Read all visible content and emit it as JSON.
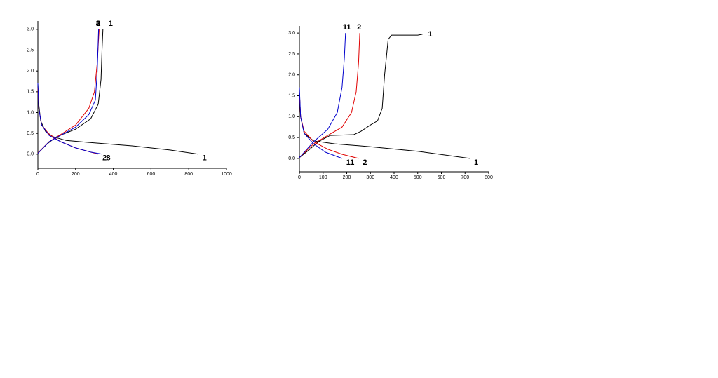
{
  "chart_data": [
    {
      "type": "line",
      "xlim": [
        0,
        1000
      ],
      "ylim": [
        -0.34,
        3.2
      ],
      "xticks": [
        0,
        200,
        400,
        600,
        800,
        1000
      ],
      "yticks": [
        {
          "value": 0,
          "label": "0.0"
        },
        {
          "value": 0.5,
          "label": "0.5"
        },
        {
          "value": 1,
          "label": "1.0"
        },
        {
          "value": 1.5,
          "label": "1.5"
        },
        {
          "value": 2,
          "label": "2.0"
        },
        {
          "value": 2.5,
          "label": "2.5"
        },
        {
          "value": 3,
          "label": "3.0"
        }
      ],
      "series": [
        {
          "name": "1",
          "color": "#000000",
          "x": [
            0,
            5,
            15,
            40,
            80,
            150,
            300,
            500,
            700,
            850,
            null,
            0,
            50,
            100,
            200,
            280,
            320,
            335,
            340,
            345
          ],
          "values": [
            1.7,
            1.2,
            0.8,
            0.55,
            0.42,
            0.33,
            0.27,
            0.2,
            0.1,
            0.0,
            null,
            0.02,
            0.25,
            0.42,
            0.6,
            0.85,
            1.2,
            1.8,
            2.5,
            3.0
          ]
        },
        {
          "name": "2",
          "color": "#e00000",
          "x": [
            0,
            5,
            20,
            60,
            120,
            200,
            280,
            320,
            null,
            0,
            60,
            120,
            200,
            270,
            300,
            315,
            325
          ],
          "values": [
            1.6,
            1.1,
            0.7,
            0.48,
            0.3,
            0.15,
            0.05,
            0.0,
            null,
            0.03,
            0.3,
            0.47,
            0.7,
            1.1,
            1.5,
            2.2,
            3.0
          ]
        },
        {
          "name": "8",
          "color": "#0000cc",
          "x": [
            0,
            5,
            20,
            60,
            120,
            200,
            280,
            340,
            null,
            0,
            60,
            120,
            200,
            270,
            305,
            315,
            322
          ],
          "values": [
            1.7,
            1.1,
            0.7,
            0.45,
            0.3,
            0.15,
            0.05,
            0.0,
            null,
            0.02,
            0.3,
            0.45,
            0.65,
            0.95,
            1.3,
            2.0,
            3.0
          ]
        }
      ]
    },
    {
      "type": "line",
      "xlim": [
        0,
        800
      ],
      "ylim": [
        -0.32,
        3.17
      ],
      "xticks": [
        0,
        100,
        200,
        300,
        400,
        500,
        600,
        700,
        800
      ],
      "yticks": [
        {
          "value": 0,
          "label": "0.0"
        },
        {
          "value": 0.5,
          "label": "0.5"
        },
        {
          "value": 1,
          "label": "1.0"
        },
        {
          "value": 1.5,
          "label": "1.5"
        },
        {
          "value": 2,
          "label": "2.0"
        },
        {
          "value": 2.5,
          "label": "2.5"
        },
        {
          "value": 3,
          "label": "3.0"
        }
      ],
      "series": [
        {
          "name": "1",
          "color": "#000000",
          "x": [
            0,
            5,
            20,
            60,
            150,
            300,
            500,
            720,
            null,
            0,
            40,
            80,
            130,
            230,
            260,
            300,
            330,
            350,
            360,
            375,
            390,
            500,
            520
          ],
          "values": [
            1.6,
            1.0,
            0.6,
            0.42,
            0.35,
            0.28,
            0.17,
            0.0,
            null,
            0.02,
            0.2,
            0.4,
            0.55,
            0.57,
            0.65,
            0.8,
            0.9,
            1.2,
            2.0,
            2.85,
            2.95,
            2.95,
            2.97
          ]
        },
        {
          "name": "2",
          "color": "#e00000",
          "x": [
            0,
            5,
            20,
            60,
            120,
            180,
            250,
            null,
            0,
            60,
            120,
            180,
            220,
            240,
            250,
            255
          ],
          "values": [
            1.6,
            1.0,
            0.65,
            0.4,
            0.22,
            0.1,
            0.0,
            null,
            0.02,
            0.35,
            0.55,
            0.75,
            1.1,
            1.6,
            2.3,
            3.0
          ]
        },
        {
          "name": "11",
          "color": "#0000cc",
          "x": [
            0,
            5,
            20,
            60,
            110,
            180,
            null,
            0,
            60,
            120,
            160,
            180,
            190,
            195
          ],
          "values": [
            1.7,
            1.0,
            0.6,
            0.35,
            0.15,
            0.0,
            null,
            0.02,
            0.4,
            0.7,
            1.1,
            1.7,
            2.4,
            3.0
          ]
        }
      ]
    }
  ]
}
